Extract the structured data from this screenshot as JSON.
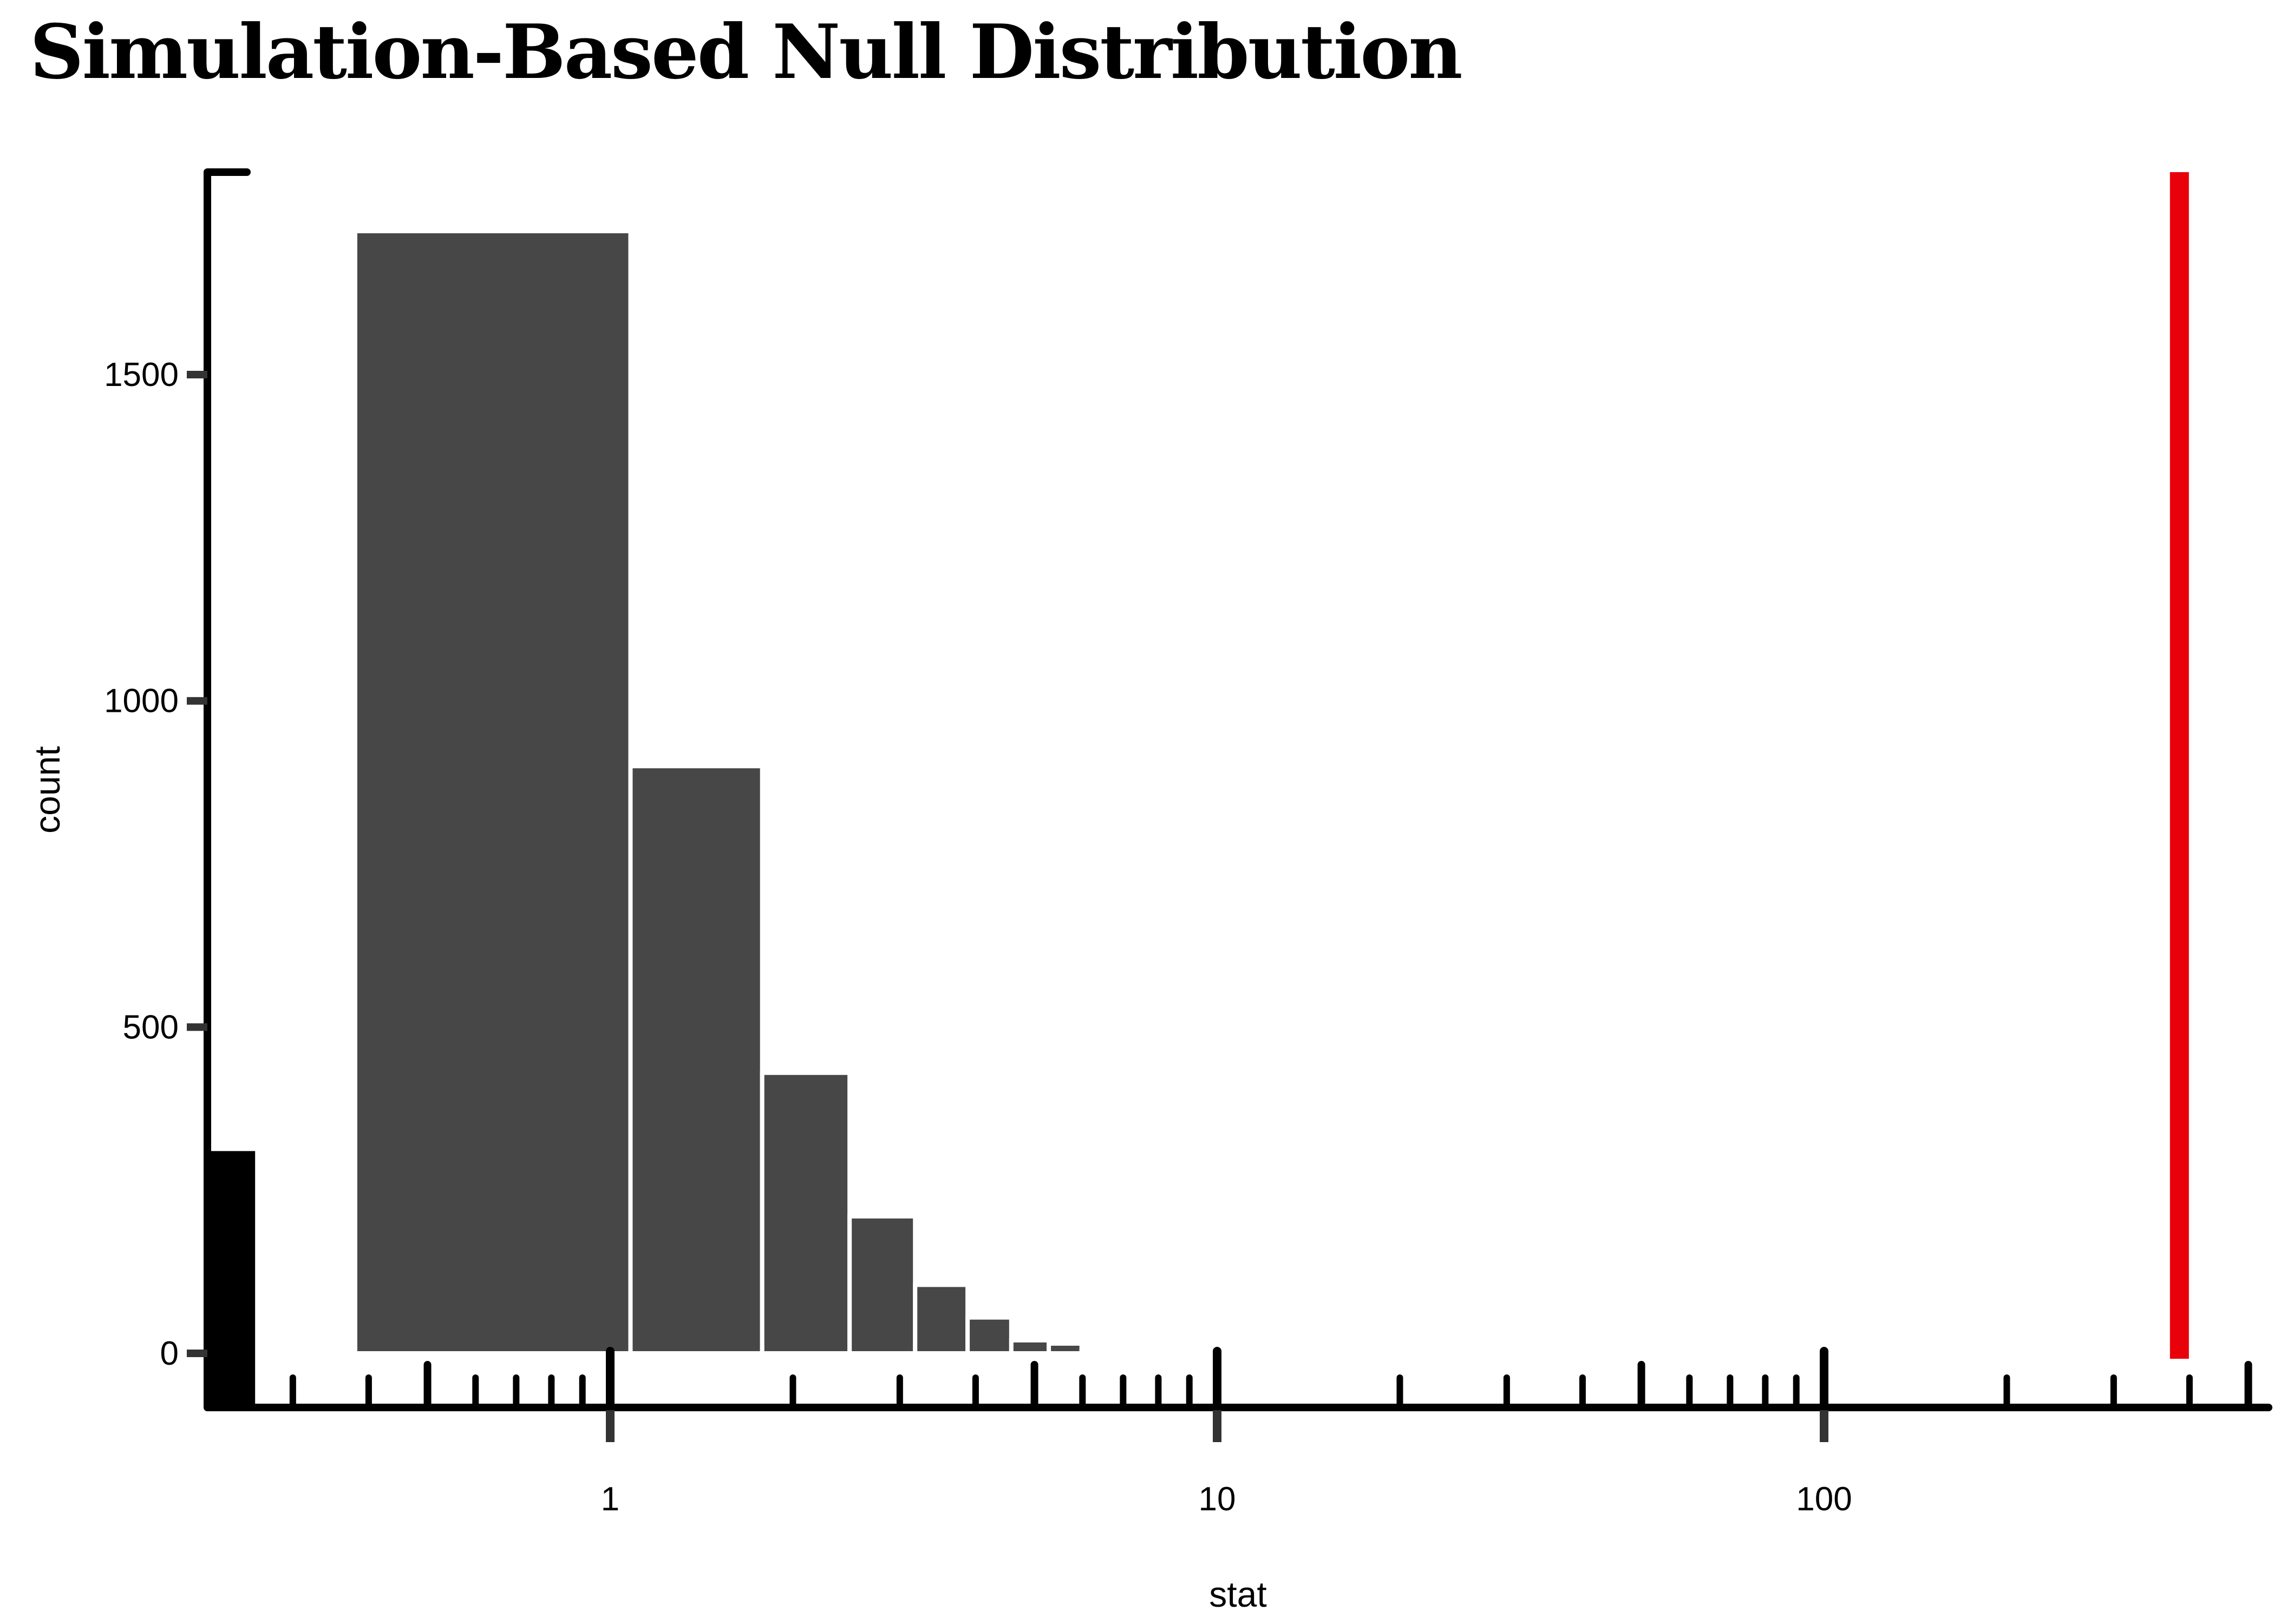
{
  "title": "Simulation-Based Null Distribution",
  "x_axis": {
    "label": "stat",
    "scale": "log10",
    "major_ticks": [
      1,
      10,
      100
    ],
    "major_tick_labels": [
      "1",
      "10",
      "100"
    ],
    "medium_ticks": [
      0.5,
      5,
      50,
      500
    ],
    "minor_ticks": [
      0.3,
      0.4,
      0.6,
      0.7,
      0.8,
      0.9,
      2,
      3,
      4,
      6,
      7,
      8,
      9,
      20,
      30,
      40,
      60,
      70,
      80,
      90,
      200,
      300,
      400
    ],
    "range": [
      0.21,
      520
    ]
  },
  "y_axis": {
    "label": "count",
    "ticks": [
      0,
      500,
      1000,
      1500
    ],
    "tick_labels": [
      "0",
      "500",
      "1000",
      "1500"
    ],
    "range": [
      0,
      1805
    ]
  },
  "chart_data": {
    "type": "bar",
    "subtype": "histogram",
    "title": "Simulation-Based Null Distribution",
    "xlabel": "stat",
    "ylabel": "count",
    "x_scale": "log10",
    "grid": false,
    "legend": false,
    "ylim": [
      0,
      1805
    ],
    "bin_width": 0.7,
    "bins": [
      {
        "from": 0.38,
        "to": 1.08,
        "count": 1720
      },
      {
        "from": 1.08,
        "to": 1.78,
        "count": 900
      },
      {
        "from": 1.78,
        "to": 2.48,
        "count": 430
      },
      {
        "from": 2.48,
        "to": 3.18,
        "count": 210
      },
      {
        "from": 3.18,
        "to": 3.88,
        "count": 105
      },
      {
        "from": 3.88,
        "to": 4.58,
        "count": 55
      },
      {
        "from": 4.58,
        "to": 5.28,
        "count": 20
      },
      {
        "from": 5.28,
        "to": 5.98,
        "count": 15
      },
      {
        "from": 5.98,
        "to": 6.68,
        "count": 5
      }
    ],
    "clipped_first_bin": {
      "from": 0,
      "to": 0.26,
      "count": 310,
      "note": "bin clipped at left edge of log-scale panel, drawn in black down to the x-axis line"
    },
    "observed_stat": 385,
    "observed_line_full_height": true
  },
  "colors": {
    "background": "#ffffff",
    "bar_fill": "#474747",
    "bar_stroke": "#ffffff",
    "clipped_bar_fill": "#000000",
    "observed_line": "#e8000b",
    "axis_line": "#000000",
    "tick_mark": "#333333",
    "text": "#000000"
  }
}
